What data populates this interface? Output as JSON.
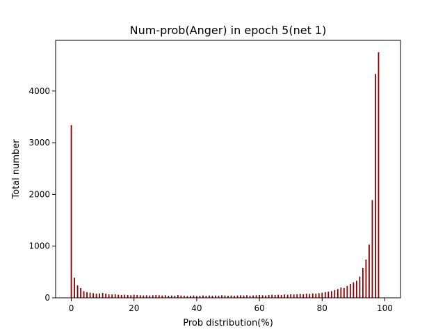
{
  "chart_data": {
    "type": "bar",
    "title": "Num-prob(Anger) in epoch 5(net 1)",
    "xlabel": "Prob distribution(%)",
    "ylabel": "Total number",
    "xlim": [
      -5,
      105
    ],
    "ylim": [
      0,
      4980
    ],
    "xticks": [
      0,
      20,
      40,
      60,
      80,
      100
    ],
    "yticks": [
      0,
      1000,
      2000,
      3000,
      4000
    ],
    "grid": false,
    "bar_color": "#8b0000",
    "x": [
      0,
      1,
      2,
      3,
      4,
      5,
      6,
      7,
      8,
      9,
      10,
      11,
      12,
      13,
      14,
      15,
      16,
      17,
      18,
      19,
      20,
      21,
      22,
      23,
      24,
      25,
      26,
      27,
      28,
      29,
      30,
      31,
      32,
      33,
      34,
      35,
      36,
      37,
      38,
      39,
      40,
      41,
      42,
      43,
      44,
      45,
      46,
      47,
      48,
      49,
      50,
      51,
      52,
      53,
      54,
      55,
      56,
      57,
      58,
      59,
      60,
      61,
      62,
      63,
      64,
      65,
      66,
      67,
      68,
      69,
      70,
      71,
      72,
      73,
      74,
      75,
      76,
      77,
      78,
      79,
      80,
      81,
      82,
      83,
      84,
      85,
      86,
      87,
      88,
      89,
      90,
      91,
      92,
      93,
      94,
      95,
      96,
      97,
      98,
      99
    ],
    "values": [
      3340,
      390,
      240,
      190,
      130,
      110,
      100,
      90,
      80,
      85,
      95,
      80,
      70,
      65,
      70,
      60,
      55,
      60,
      55,
      50,
      60,
      55,
      50,
      45,
      50,
      45,
      50,
      55,
      50,
      45,
      50,
      40,
      45,
      40,
      55,
      45,
      40,
      35,
      40,
      45,
      35,
      40,
      45,
      40,
      45,
      40,
      45,
      40,
      50,
      45,
      40,
      45,
      40,
      45,
      50,
      45,
      50,
      40,
      45,
      50,
      55,
      50,
      45,
      55,
      60,
      55,
      60,
      55,
      65,
      60,
      70,
      65,
      70,
      75,
      70,
      80,
      75,
      85,
      80,
      90,
      100,
      110,
      120,
      130,
      150,
      170,
      200,
      190,
      230,
      270,
      300,
      330,
      410,
      580,
      740,
      1030,
      1890,
      4330,
      4750,
      0
    ]
  }
}
